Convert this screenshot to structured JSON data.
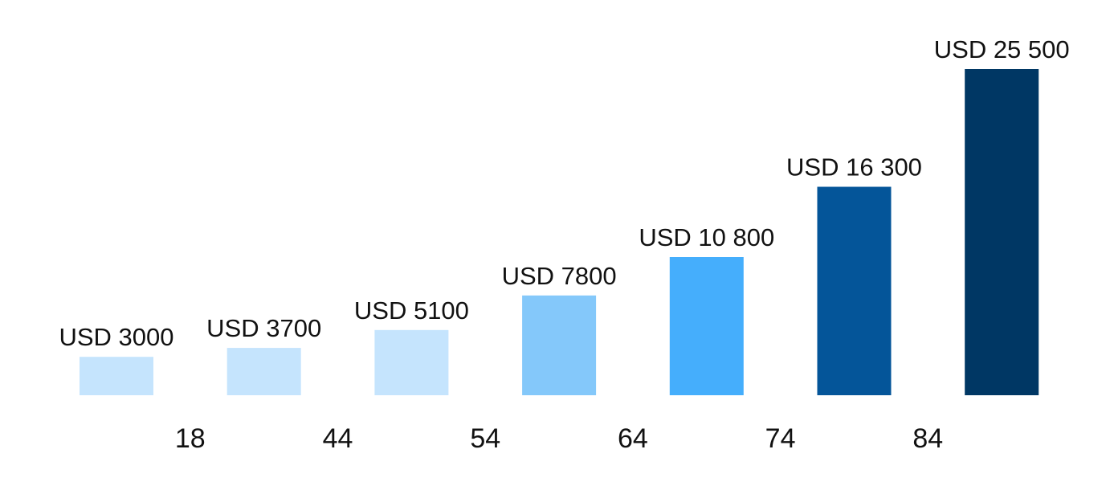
{
  "chart_data": {
    "type": "bar",
    "title": "",
    "xlabel": "",
    "ylabel": "",
    "categories": [
      "",
      "",
      "",
      "",
      "",
      "",
      ""
    ],
    "values": [
      3000,
      3700,
      5100,
      7800,
      10800,
      16300,
      25500
    ],
    "data_labels": [
      "USD 3000",
      "USD 3700",
      "USD 5100",
      "USD 7800",
      "USD 10 800",
      "USD 16 300",
      "USD 25 500"
    ],
    "bar_colors": [
      "#c5e4fd",
      "#c5e4fd",
      "#c5e4fd",
      "#84c8fa",
      "#45aefc",
      "#045599",
      "#003764"
    ],
    "boundary_ticks": [
      "18",
      "44",
      "54",
      "64",
      "74",
      "84"
    ],
    "ylim": [
      0,
      25500
    ],
    "grid": false,
    "legend": "none"
  }
}
